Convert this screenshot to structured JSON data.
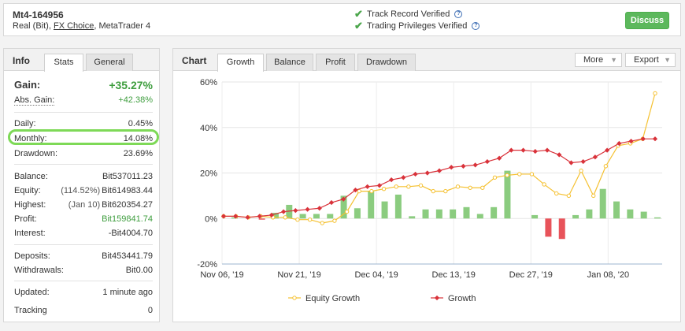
{
  "account": {
    "title": "Mt4-164956",
    "sub_prefix": "Real (Bit), ",
    "broker_link": "FX Choice",
    "sub_suffix": ", MetaTrader 4"
  },
  "verification": {
    "track_record": "Track Record Verified",
    "trading_privileges": "Trading Privileges Verified",
    "help_glyph": "?"
  },
  "discuss_label": "Discuss",
  "left_panel": {
    "title": "Info",
    "tabs": [
      "Stats",
      "General"
    ],
    "gain": {
      "label": "Gain:",
      "value": "+35.27%"
    },
    "abs_gain": {
      "label": "Abs. Gain:",
      "value": "+42.38%"
    },
    "daily": {
      "label": "Daily:",
      "value": "0.45%"
    },
    "monthly": {
      "label": "Monthly:",
      "value": "14.08%"
    },
    "drawdown": {
      "label": "Drawdown:",
      "value": "23.69%"
    },
    "balance": {
      "label": "Balance:",
      "value": "Bit537011.23"
    },
    "equity": {
      "label": "Equity:",
      "paren": "(114.52%)",
      "value": "Bit614983.44"
    },
    "highest": {
      "label": "Highest:",
      "paren": "(Jan 10)",
      "value": "Bit620354.27"
    },
    "profit": {
      "label": "Profit:",
      "value": "Bit159841.74"
    },
    "interest": {
      "label": "Interest:",
      "value": "-Bit4004.70"
    },
    "deposits": {
      "label": "Deposits:",
      "value": "Bit453441.79"
    },
    "withdrawals": {
      "label": "Withdrawals:",
      "value": "Bit0.00"
    },
    "updated": {
      "label": "Updated:",
      "value": "1 minute ago"
    },
    "tracking": {
      "label": "Tracking",
      "value": "0"
    }
  },
  "chart_panel": {
    "title": "Chart",
    "tabs": [
      "Growth",
      "Balance",
      "Profit",
      "Drawdown"
    ],
    "more_label": "More",
    "export_label": "Export"
  },
  "colors": {
    "equity_line": "#f5c131",
    "growth_line": "#d9323a",
    "bar_positive": "#8bcc7f",
    "bar_negative": "#e8535a",
    "highlight": "#7ed957",
    "green_text": "#3f9e3f"
  },
  "chart_data": {
    "type": "line",
    "x_tick_labels": [
      "Nov 06, '19",
      "Nov 21, '19",
      "Dec 04, '19",
      "Dec 13, '19",
      "Dec 27, '19",
      "Jan 08, '20"
    ],
    "ylim": [
      -20,
      60
    ],
    "y_ticks": [
      -20,
      0,
      20,
      40,
      60
    ],
    "y_tick_labels": [
      "-20%",
      "0%",
      "20%",
      "40%",
      "60%"
    ],
    "legend_position": "bottom",
    "grid": true,
    "series": [
      {
        "name": "Equity Growth",
        "values": [
          1,
          1,
          0.5,
          1,
          0.5,
          0.5,
          -0.5,
          -0.5,
          -2,
          -1,
          3,
          12,
          12,
          13,
          14,
          14,
          14.5,
          12,
          12,
          14,
          13.5,
          13.5,
          18,
          19,
          19.5,
          19.5,
          15,
          11,
          10,
          21,
          10,
          23,
          32,
          33,
          35,
          55
        ]
      },
      {
        "name": "Growth",
        "values": [
          1,
          1,
          0.5,
          1,
          1.5,
          3,
          3.5,
          4,
          4.5,
          7,
          8.5,
          12.5,
          14,
          14.5,
          17,
          18,
          19.5,
          20,
          21,
          22.5,
          23,
          23.5,
          25,
          26.5,
          30,
          30,
          29.5,
          30,
          28,
          24.5,
          25,
          27,
          30,
          33,
          34,
          35,
          35
        ]
      }
    ],
    "bars": [
      0.5,
      0,
      -0.5,
      2.5,
      6,
      2,
      2,
      2,
      10,
      4.5,
      12,
      7.5,
      10.5,
      1,
      4,
      4,
      4,
      5,
      2,
      5,
      21,
      0,
      1.5,
      -8,
      -9,
      1.5,
      4,
      13,
      7.5,
      4,
      3,
      0.5
    ]
  }
}
